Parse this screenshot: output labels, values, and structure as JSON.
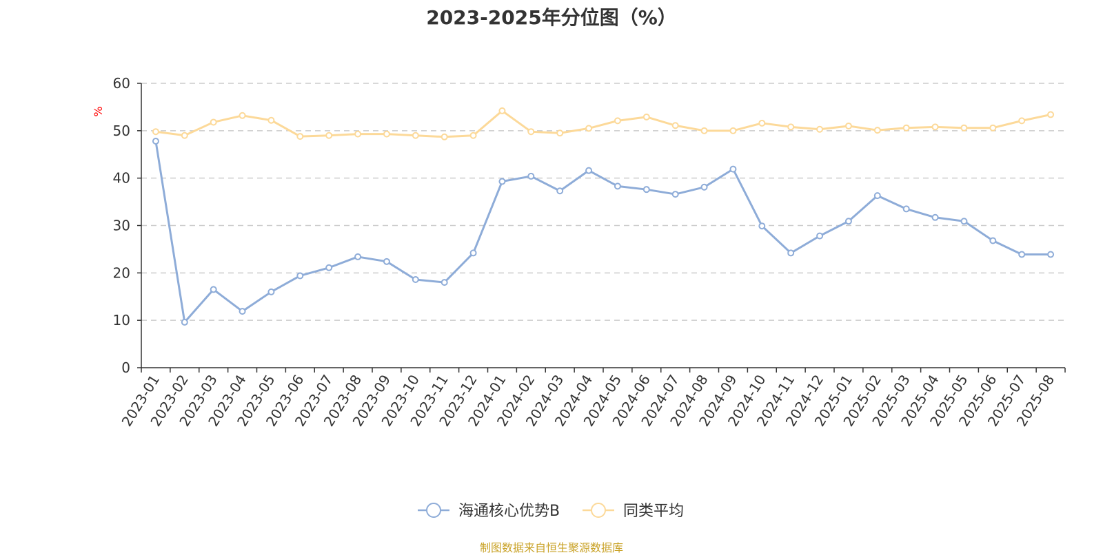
{
  "title": "2023-2025年分位图（%）",
  "source": "制图数据来自恒生聚源数据库",
  "colors": {
    "series1": "#8eacd8",
    "series2": "#fcd999",
    "unit_label": "#ff0000",
    "grid": "#cccccc",
    "axis": "#333333",
    "source_text": "#c9a227"
  },
  "chart_data": {
    "type": "line",
    "title": "2023-2025年分位图（%）",
    "ylabel": "%",
    "xlabel": "",
    "ylim": [
      0,
      60
    ],
    "yticks": [
      0,
      10,
      20,
      30,
      40,
      50,
      60
    ],
    "grid": true,
    "legend_position": "bottom",
    "categories": [
      "2023-01",
      "2023-02",
      "2023-03",
      "2023-04",
      "2023-05",
      "2023-06",
      "2023-07",
      "2023-08",
      "2023-09",
      "2023-10",
      "2023-11",
      "2023-12",
      "2024-01",
      "2024-02",
      "2024-03",
      "2024-04",
      "2024-05",
      "2024-06",
      "2024-07",
      "2024-08",
      "2024-09",
      "2024-10",
      "2024-11",
      "2024-12",
      "2025-01",
      "2025-02",
      "2025-03",
      "2025-04",
      "2025-05",
      "2025-06",
      "2025-07",
      "2025-08"
    ],
    "series": [
      {
        "name": "海通核心优势B",
        "color": "#8eacd8",
        "values": [
          47.8,
          9.6,
          16.5,
          11.9,
          16.0,
          19.4,
          21.1,
          23.4,
          22.4,
          18.6,
          18.0,
          24.2,
          39.3,
          40.4,
          37.3,
          41.6,
          38.3,
          37.6,
          36.6,
          38.1,
          41.9,
          29.9,
          24.2,
          27.8,
          30.9,
          36.3,
          33.5,
          31.7,
          30.9,
          26.8,
          23.9,
          23.9
        ]
      },
      {
        "name": "同类平均",
        "color": "#fcd999",
        "values": [
          49.8,
          49.0,
          51.8,
          53.2,
          52.2,
          48.8,
          49.0,
          49.3,
          49.3,
          49.0,
          48.7,
          49.0,
          54.2,
          49.8,
          49.5,
          50.5,
          52.1,
          52.9,
          51.1,
          50.0,
          50.0,
          51.6,
          50.8,
          50.3,
          51.0,
          50.1,
          50.6,
          50.8,
          50.6,
          50.6,
          52.1,
          53.4
        ]
      }
    ]
  }
}
